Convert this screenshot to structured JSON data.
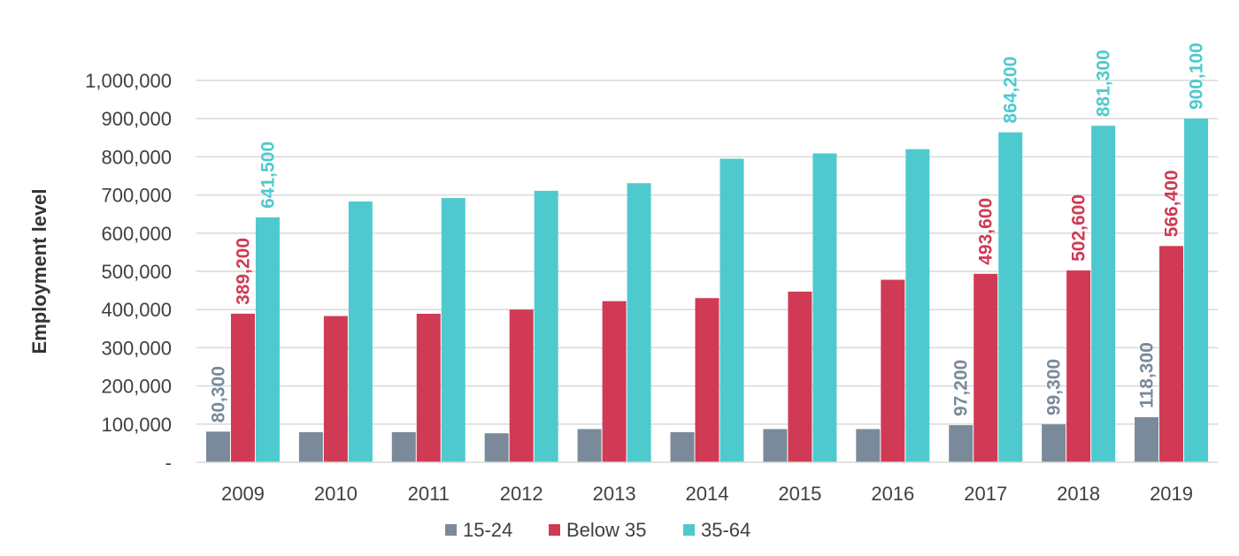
{
  "chart_data": {
    "type": "bar",
    "title": "",
    "xlabel": "",
    "ylabel": "Employment level",
    "ylim": [
      0,
      1000000
    ],
    "yticks": [
      0,
      100000,
      200000,
      300000,
      400000,
      500000,
      600000,
      700000,
      800000,
      900000,
      1000000
    ],
    "ytick_labels": [
      "-",
      "100,000",
      "200,000",
      "300,000",
      "400,000",
      "500,000",
      "600,000",
      "700,000",
      "800,000",
      "900,000",
      "1,000,000"
    ],
    "grid": true,
    "legend_position": "bottom",
    "categories": [
      "2009",
      "2010",
      "2011",
      "2012",
      "2013",
      "2014",
      "2015",
      "2016",
      "2017",
      "2018",
      "2019"
    ],
    "series": [
      {
        "name": "15-24",
        "color": "#7A8A9A",
        "values": [
          80300,
          79000,
          79000,
          76000,
          87000,
          79000,
          87000,
          87000,
          97200,
          99300,
          118300
        ],
        "labels": [
          "80,300",
          "",
          "",
          "",
          "",
          "",
          "",
          "",
          "97,200",
          "99,300",
          "118,300"
        ]
      },
      {
        "name": "Below 35",
        "color": "#D13A55",
        "values": [
          389200,
          383000,
          389000,
          400000,
          422000,
          430000,
          447000,
          478000,
          493600,
          502600,
          566400
        ],
        "labels": [
          "389,200",
          "",
          "",
          "",
          "",
          "",
          "",
          "",
          "493,600",
          "502,600",
          "566,400"
        ]
      },
      {
        "name": "35-64",
        "color": "#4ECACE",
        "values": [
          641500,
          683000,
          692000,
          711000,
          731000,
          795000,
          809000,
          820000,
          864200,
          881300,
          900100
        ],
        "labels": [
          "641,500",
          "",
          "",
          "",
          "",
          "",
          "",
          "",
          "864,200",
          "881,300",
          "900,100"
        ]
      }
    ]
  }
}
